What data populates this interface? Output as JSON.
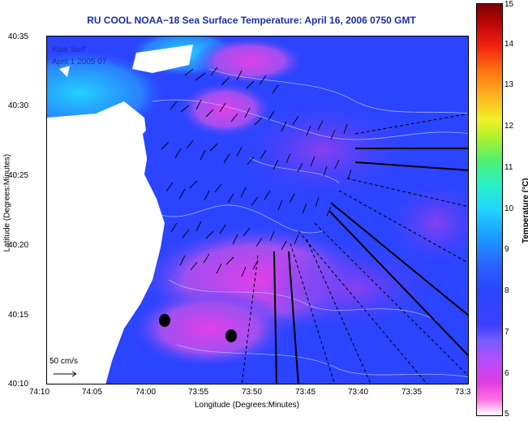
{
  "title": "RU COOL  NOAA−18  Sea Surface Temperature:  April 16, 2006 0750 GMT",
  "legend": {
    "line1": "Raw Surf",
    "line2": "April 1",
    "line2_tail": "2005 07"
  },
  "axes": {
    "xlabel": "Longitude (Degrees:Minutes)",
    "ylabel": "Latitude (Degrees:Minutes)",
    "xticks": [
      "74:10",
      "74:05",
      "74:00",
      "73:55",
      "73:50",
      "73:45",
      "73:40",
      "73:35",
      "73:3"
    ],
    "yticks": [
      "40:35",
      "40:30",
      "40:25",
      "40:20",
      "40:15",
      "40:10"
    ]
  },
  "colorbar": {
    "label": "Temperature (°C)",
    "ticks": [
      "15",
      "14",
      "13",
      "12",
      "11",
      "10",
      "9",
      "8",
      "7",
      "6",
      "5"
    ]
  },
  "scale_vector": {
    "label": "50 cm/s"
  },
  "colors": {
    "ocean_blue": "#2a44ff",
    "cold_pink": "#d040e0",
    "warm_cyan": "#20c8ff",
    "land": "#ffffff",
    "title_blue": "#1a2ea8"
  }
}
